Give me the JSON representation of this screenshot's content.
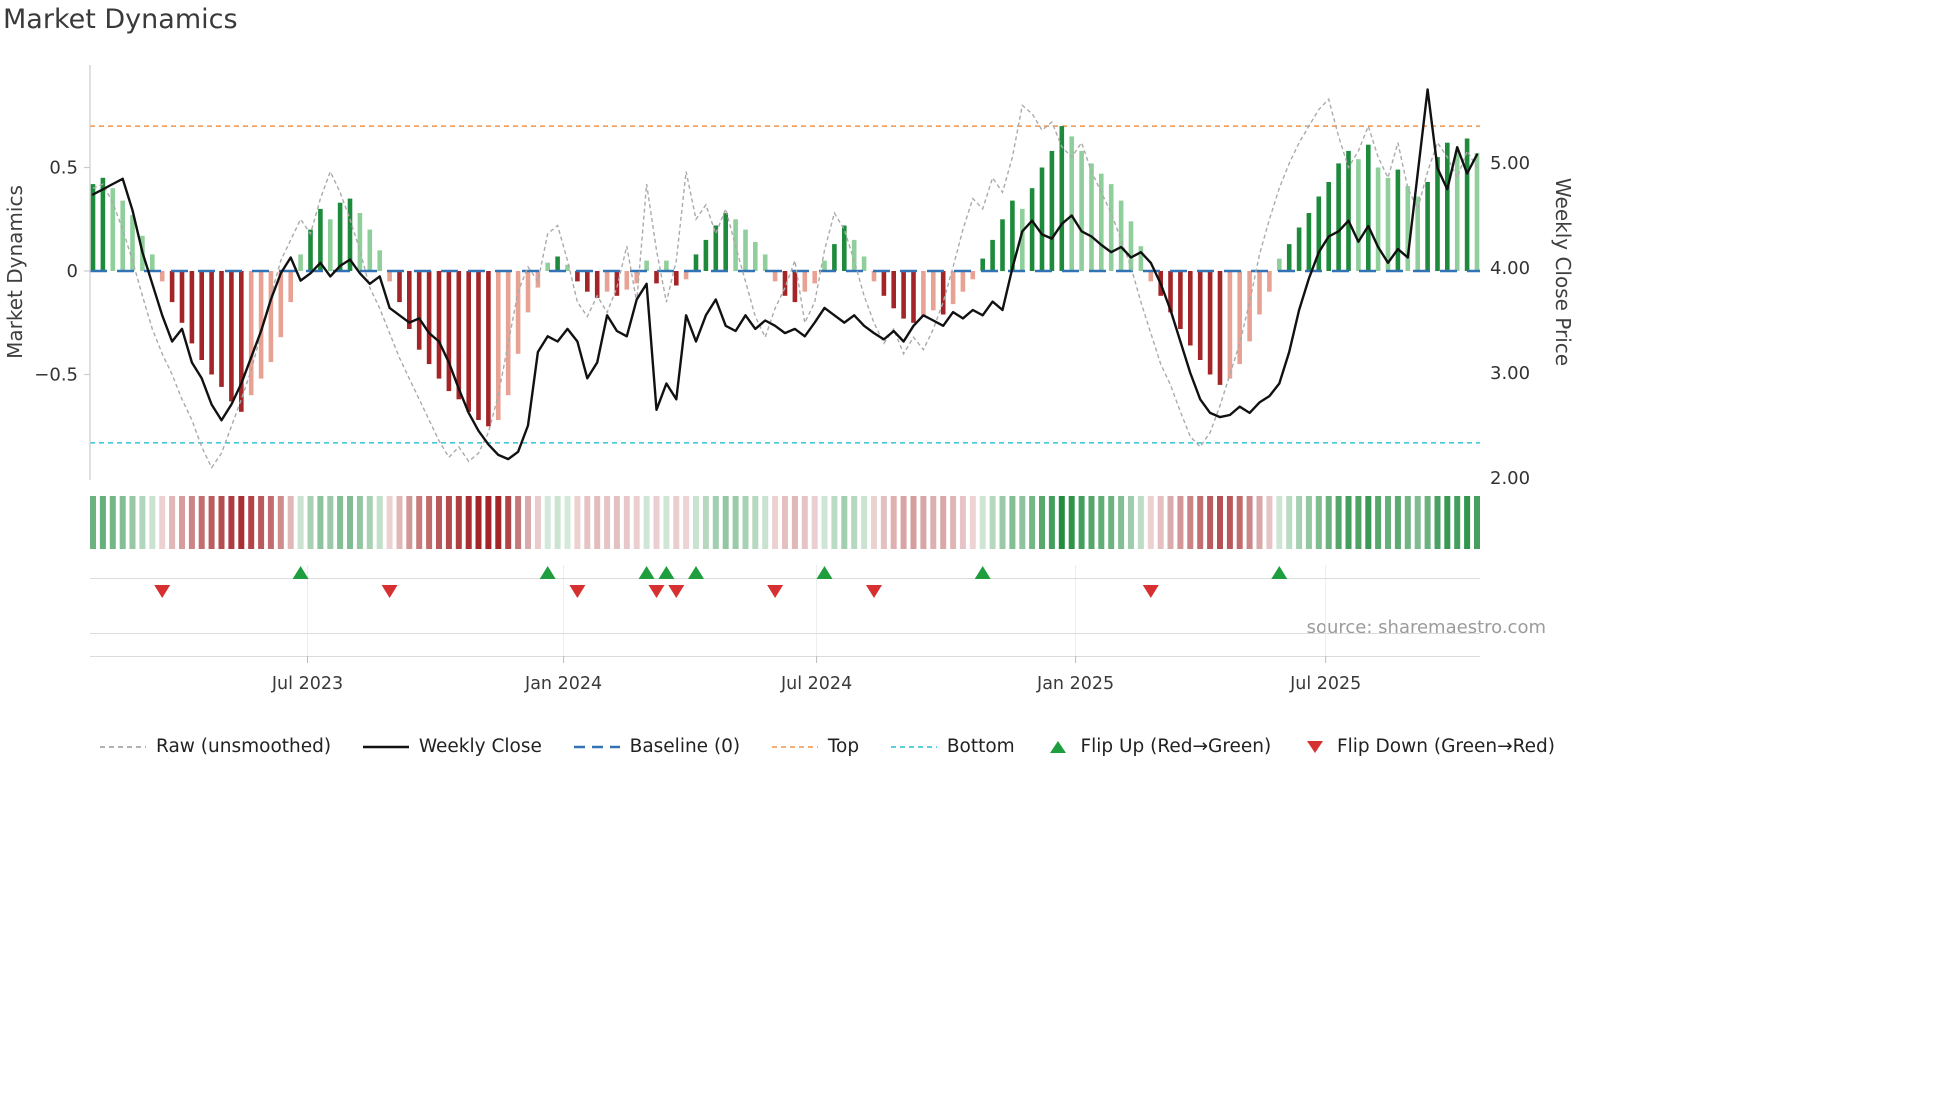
{
  "title": "Market Dynamics",
  "source": "source: sharemaestro.com",
  "colors": {
    "strong_green": "#1e8a3c",
    "weak_green": "#8fcf9b",
    "strong_red": "#a32528",
    "weak_red": "#e8a294",
    "close_line": "#111111",
    "raw_line": "#aaaaaa",
    "baseline": "#3273b5",
    "top_line": "#f2a263",
    "bottom_line": "#45c7dc",
    "flip_up": "#1e9e3e",
    "flip_down": "#d63031"
  },
  "legend": [
    {
      "label": "Raw (unsmoothed)",
      "swatch": "dash-gray"
    },
    {
      "label": "Weekly Close",
      "swatch": "solid-black"
    },
    {
      "label": "Baseline (0)",
      "swatch": "dash-blue"
    },
    {
      "label": "Top",
      "swatch": "dash-orange"
    },
    {
      "label": "Bottom",
      "swatch": "dash-cyan"
    },
    {
      "label": "Flip Up (Red→Green)",
      "swatch": "triangle-up"
    },
    {
      "label": "Flip Down (Green→Red)",
      "swatch": "triangle-down"
    }
  ],
  "chart_data": {
    "type": "bar+line composite, weekly data",
    "x_range": "Feb 2023 – Oct 2025",
    "n_weeks": 141,
    "left_axis": {
      "label": "Market Dynamics",
      "ylim": [
        -1.0,
        1.0
      ],
      "ticks": [
        {
          "value": -0.5,
          "label": "−0.5"
        },
        {
          "value": 0,
          "label": "0"
        },
        {
          "value": 0.5,
          "label": "0.5"
        }
      ]
    },
    "right_axis": {
      "label": "Weekly Close Price",
      "ylim": [
        1.97,
        5.95
      ],
      "ticks": [
        {
          "value": 2,
          "label": "2.00"
        },
        {
          "value": 3,
          "label": "3.00"
        },
        {
          "value": 4,
          "label": "4.00"
        },
        {
          "value": 5,
          "label": "5.00"
        }
      ]
    },
    "reference_lines": {
      "baseline": 0,
      "top": 0.7,
      "bottom": -0.83
    },
    "x_tick_weeks": [
      21.7,
      47.6,
      73.2,
      99.4,
      124.7
    ],
    "x_tick_labels": [
      "Jul 2023",
      "Jan 2024",
      "Jul 2024",
      "Jan 2025",
      "Jul 2025"
    ],
    "oscillator": [
      0.42,
      0.45,
      0.4,
      0.34,
      0.27,
      0.17,
      0.08,
      -0.05,
      -0.15,
      -0.25,
      -0.35,
      -0.43,
      -0.5,
      -0.56,
      -0.63,
      -0.68,
      -0.6,
      -0.52,
      -0.44,
      -0.32,
      -0.15,
      0.08,
      0.2,
      0.3,
      0.25,
      0.33,
      0.35,
      0.28,
      0.2,
      0.1,
      -0.05,
      -0.15,
      -0.28,
      -0.38,
      -0.45,
      -0.52,
      -0.58,
      -0.62,
      -0.68,
      -0.72,
      -0.75,
      -0.72,
      -0.6,
      -0.4,
      -0.2,
      -0.08,
      0.04,
      0.07,
      0.03,
      -0.05,
      -0.1,
      -0.13,
      -0.1,
      -0.12,
      -0.09,
      -0.06,
      0.05,
      -0.06,
      0.05,
      -0.07,
      -0.04,
      0.08,
      0.15,
      0.22,
      0.28,
      0.25,
      0.2,
      0.14,
      0.08,
      -0.05,
      -0.12,
      -0.15,
      -0.1,
      -0.06,
      0.05,
      0.13,
      0.22,
      0.15,
      0.07,
      -0.05,
      -0.12,
      -0.18,
      -0.23,
      -0.25,
      -0.22,
      -0.19,
      -0.21,
      -0.16,
      -0.1,
      -0.04,
      0.06,
      0.15,
      0.25,
      0.34,
      0.3,
      0.4,
      0.5,
      0.58,
      0.7,
      0.65,
      0.58,
      0.52,
      0.47,
      0.42,
      0.34,
      0.24,
      0.12,
      -0.05,
      -0.12,
      -0.2,
      -0.28,
      -0.36,
      -0.43,
      -0.5,
      -0.55,
      -0.52,
      -0.45,
      -0.34,
      -0.21,
      -0.1,
      0.06,
      0.13,
      0.21,
      0.28,
      0.36,
      0.43,
      0.52,
      0.58,
      0.54,
      0.61,
      0.5,
      0.45,
      0.49,
      0.41,
      0.36,
      0.43,
      0.55,
      0.62,
      0.58,
      0.64,
      0.57
    ],
    "raw": [
      0.4,
      0.42,
      0.33,
      0.2,
      0.05,
      -0.12,
      -0.28,
      -0.4,
      -0.5,
      -0.62,
      -0.72,
      -0.85,
      -0.95,
      -0.88,
      -0.75,
      -0.62,
      -0.48,
      -0.3,
      -0.12,
      0.05,
      0.15,
      0.25,
      0.18,
      0.35,
      0.48,
      0.38,
      0.25,
      0.1,
      -0.08,
      -0.18,
      -0.3,
      -0.42,
      -0.52,
      -0.62,
      -0.72,
      -0.82,
      -0.9,
      -0.85,
      -0.92,
      -0.88,
      -0.78,
      -0.6,
      -0.35,
      -0.1,
      0.02,
      -0.05,
      0.18,
      0.22,
      0.05,
      -0.15,
      -0.22,
      -0.12,
      -0.2,
      -0.08,
      0.12,
      -0.15,
      0.42,
      0.1,
      -0.15,
      0.05,
      0.48,
      0.25,
      0.32,
      0.18,
      0.3,
      0.12,
      -0.05,
      -0.22,
      -0.32,
      -0.18,
      -0.08,
      0.05,
      -0.25,
      -0.15,
      0.1,
      0.28,
      0.2,
      0.05,
      -0.12,
      -0.25,
      -0.35,
      -0.28,
      -0.4,
      -0.32,
      -0.38,
      -0.28,
      -0.15,
      0.02,
      0.2,
      0.35,
      0.3,
      0.45,
      0.38,
      0.55,
      0.8,
      0.76,
      0.68,
      0.72,
      0.6,
      0.55,
      0.62,
      0.48,
      0.38,
      0.28,
      0.15,
      0.02,
      -0.15,
      -0.3,
      -0.45,
      -0.55,
      -0.68,
      -0.8,
      -0.85,
      -0.78,
      -0.65,
      -0.5,
      -0.35,
      -0.15,
      0.08,
      0.25,
      0.4,
      0.52,
      0.62,
      0.7,
      0.78,
      0.83,
      0.65,
      0.5,
      0.58,
      0.7,
      0.55,
      0.45,
      0.62,
      0.4,
      0.3,
      0.48,
      0.62,
      0.55,
      0.45,
      0.58,
      0.5
    ],
    "weekly_close": [
      4.7,
      4.75,
      4.8,
      4.85,
      4.55,
      4.15,
      3.85,
      3.55,
      3.3,
      3.42,
      3.1,
      2.95,
      2.7,
      2.55,
      2.7,
      2.9,
      3.15,
      3.4,
      3.7,
      3.95,
      4.1,
      3.88,
      3.95,
      4.05,
      3.92,
      4.02,
      4.08,
      3.95,
      3.85,
      3.92,
      3.62,
      3.55,
      3.48,
      3.52,
      3.38,
      3.3,
      3.1,
      2.85,
      2.62,
      2.45,
      2.32,
      2.22,
      2.18,
      2.25,
      2.5,
      3.2,
      3.35,
      3.3,
      3.42,
      3.3,
      2.95,
      3.1,
      3.55,
      3.4,
      3.35,
      3.7,
      3.85,
      2.65,
      2.9,
      2.75,
      3.55,
      3.3,
      3.55,
      3.7,
      3.45,
      3.4,
      3.55,
      3.42,
      3.5,
      3.45,
      3.38,
      3.42,
      3.35,
      3.48,
      3.62,
      3.55,
      3.48,
      3.55,
      3.45,
      3.38,
      3.32,
      3.4,
      3.3,
      3.45,
      3.55,
      3.5,
      3.45,
      3.58,
      3.52,
      3.6,
      3.55,
      3.68,
      3.6,
      4.0,
      4.35,
      4.45,
      4.32,
      4.28,
      4.42,
      4.5,
      4.35,
      4.3,
      4.22,
      4.15,
      4.2,
      4.1,
      4.15,
      4.05,
      3.85,
      3.6,
      3.3,
      3.0,
      2.75,
      2.62,
      2.58,
      2.6,
      2.68,
      2.62,
      2.72,
      2.78,
      2.9,
      3.2,
      3.6,
      3.9,
      4.15,
      4.3,
      4.35,
      4.45,
      4.25,
      4.4,
      4.2,
      4.05,
      4.18,
      4.1,
      4.9,
      5.7,
      4.95,
      4.75,
      5.15,
      4.9,
      5.08
    ],
    "flip_up_weeks": [
      21,
      46,
      56,
      58,
      61,
      74,
      90,
      120
    ],
    "flip_down_weeks": [
      7,
      30,
      49,
      57,
      59,
      69,
      79,
      107
    ],
    "heatmap_note": "strip below main plot: one cell per week, hue = sign of oscillator, intensity = |oscillator|"
  }
}
